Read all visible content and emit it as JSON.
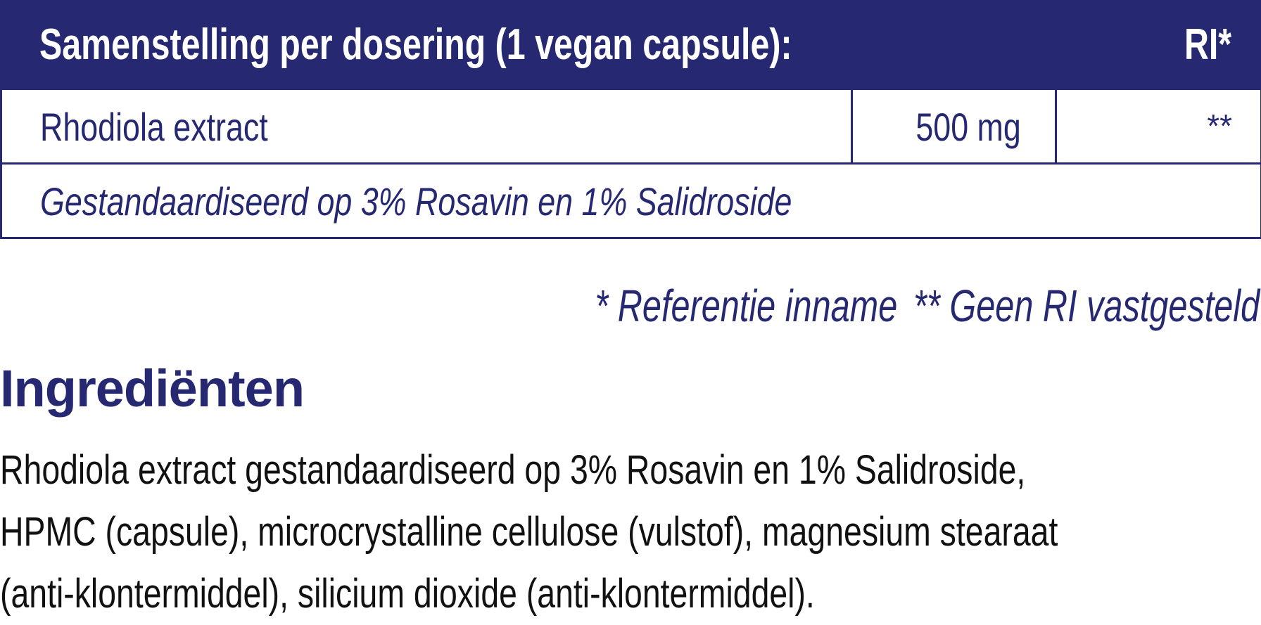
{
  "table": {
    "header": {
      "title": "Samenstelling per dosering (1 vegan capsule):",
      "ri": "RI*"
    },
    "rows": [
      {
        "name": "Rhodiola extract",
        "amount": "500 mg",
        "ri": "**"
      },
      {
        "note": "Gestandaardiseerd op 3% Rosavin en 1% Salidroside"
      }
    ]
  },
  "footnotes": [
    "* Referentie inname",
    "** Geen RI vastgesteld"
  ],
  "ingredients": {
    "title": "Ingrediënten",
    "lines": [
      "Rhodiola extract gestandaardiseerd op 3% Rosavin en 1% Salidroside,",
      "HPMC (capsule), microcrystalline cellulose (vulstof), magnesium stearaat",
      "(anti-klontermiddel), silicium dioxide (anti-klontermiddel)."
    ]
  },
  "colors": {
    "brand": "#262872",
    "text": "#111111"
  }
}
